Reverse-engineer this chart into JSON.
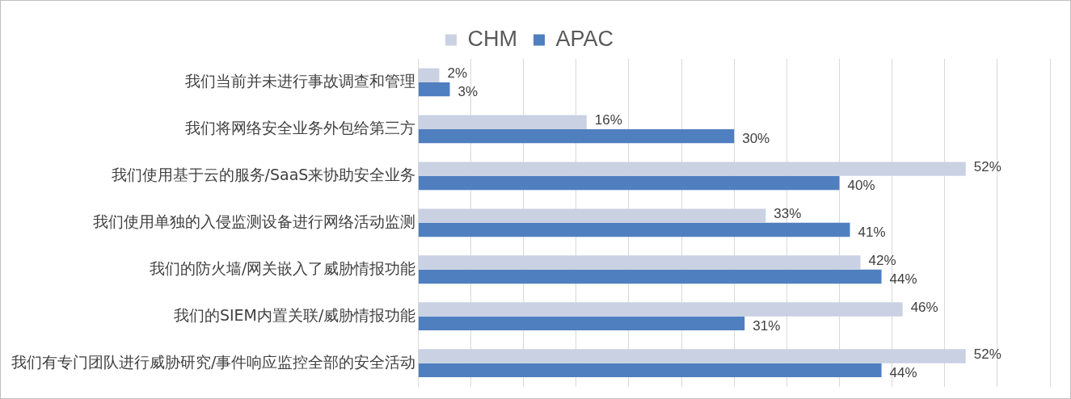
{
  "chart_data": {
    "type": "bar",
    "orientation": "horizontal",
    "categories": [
      "我们当前并未进行事故调查和管理",
      "我们将网络安全业务外包给第三方",
      "我们使用基于云的服务/SaaS来协助安全业务",
      "我们使用单独的入侵监测设备进行网络活动监测",
      "我们的防火墙/网关嵌入了威胁情报功能",
      "我们的SIEM内置关联/威胁情报功能",
      "我们有专门团队进行威胁研究/事件响应监控全部的安全活动"
    ],
    "series": [
      {
        "name": "CHM",
        "color": "#c9d1e3",
        "values": [
          2,
          16,
          52,
          33,
          42,
          46,
          52
        ],
        "value_labels": [
          "2%",
          "16%",
          "52%",
          "33%",
          "42%",
          "46%",
          "52%"
        ]
      },
      {
        "name": "APAC",
        "color": "#4f7fbf",
        "values": [
          3,
          30,
          40,
          41,
          44,
          31,
          44
        ],
        "value_labels": [
          "3%",
          "30%",
          "40%",
          "41%",
          "44%",
          "31%",
          "44%"
        ]
      }
    ],
    "xlim": [
      0,
      60
    ],
    "xticks": [
      {
        "value": 0,
        "label": null
      },
      {
        "value": 5,
        "label": null
      },
      {
        "value": 10,
        "label": null
      },
      {
        "value": 15,
        "label": null
      },
      {
        "value": 20,
        "label": null
      },
      {
        "value": 25,
        "label": null
      },
      {
        "value": 30,
        "label": null
      },
      {
        "value": 35,
        "label": null
      },
      {
        "value": 40,
        "label": null
      },
      {
        "value": 45,
        "label": null
      },
      {
        "value": 50,
        "label": null
      },
      {
        "value": 55,
        "label": null
      },
      {
        "value": 60,
        "label": null
      }
    ],
    "tick_labels": "y",
    "grid": "x",
    "legend": "top"
  }
}
